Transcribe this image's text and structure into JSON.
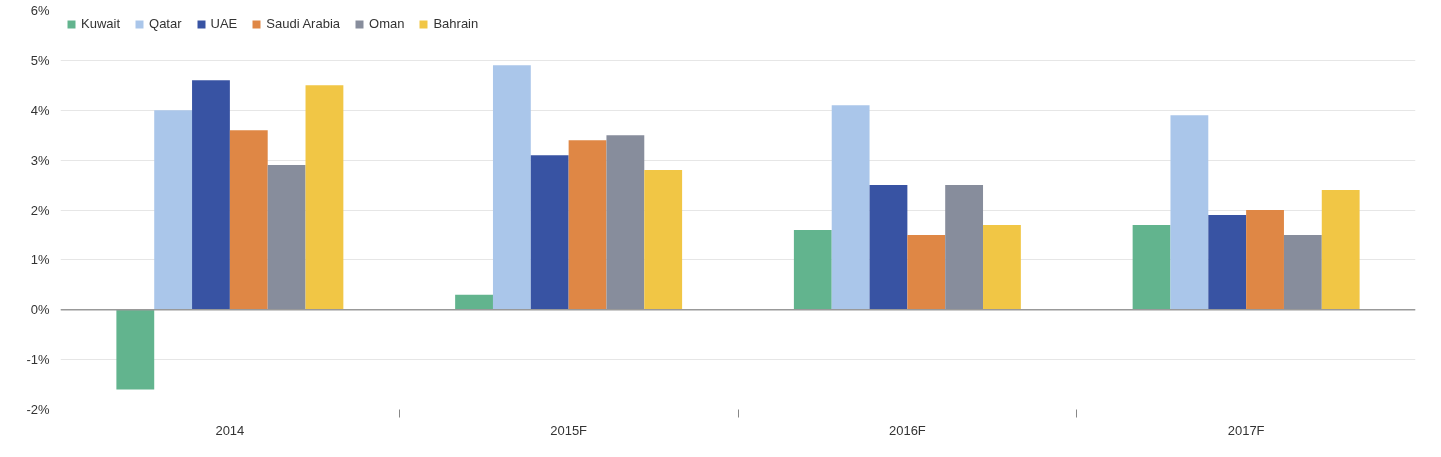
{
  "chart_data": {
    "type": "bar",
    "categories": [
      "2014",
      "2015F",
      "2016F",
      "2017F"
    ],
    "series": [
      {
        "name": "Kuwait",
        "color": "#62b48e",
        "values": [
          -1.6,
          0.3,
          1.6,
          1.7
        ]
      },
      {
        "name": "Qatar",
        "color": "#aac6ea",
        "values": [
          4.0,
          4.9,
          4.1,
          3.9
        ]
      },
      {
        "name": "UAE",
        "color": "#3853a3",
        "values": [
          4.6,
          3.1,
          2.5,
          1.9
        ]
      },
      {
        "name": "Saudi Arabia",
        "color": "#df8745",
        "values": [
          3.6,
          3.4,
          1.5,
          2.0
        ]
      },
      {
        "name": "Oman",
        "color": "#878d9c",
        "values": [
          2.9,
          3.5,
          2.5,
          1.5
        ]
      },
      {
        "name": "Bahrain",
        "color": "#f1c645",
        "values": [
          4.5,
          2.8,
          1.7,
          2.4
        ]
      }
    ],
    "ylim": [
      -2,
      6
    ],
    "yticks": [
      {
        "value": -2,
        "label": "-2%"
      },
      {
        "value": -1,
        "label": "-1%"
      },
      {
        "value": 0,
        "label": "0%"
      },
      {
        "value": 1,
        "label": "1%"
      },
      {
        "value": 2,
        "label": "2%"
      },
      {
        "value": 3,
        "label": "3%"
      },
      {
        "value": 4,
        "label": "4%"
      },
      {
        "value": 5,
        "label": "5%"
      },
      {
        "value": 6,
        "label": "6%"
      }
    ],
    "grid": "y",
    "legend": "top left"
  }
}
